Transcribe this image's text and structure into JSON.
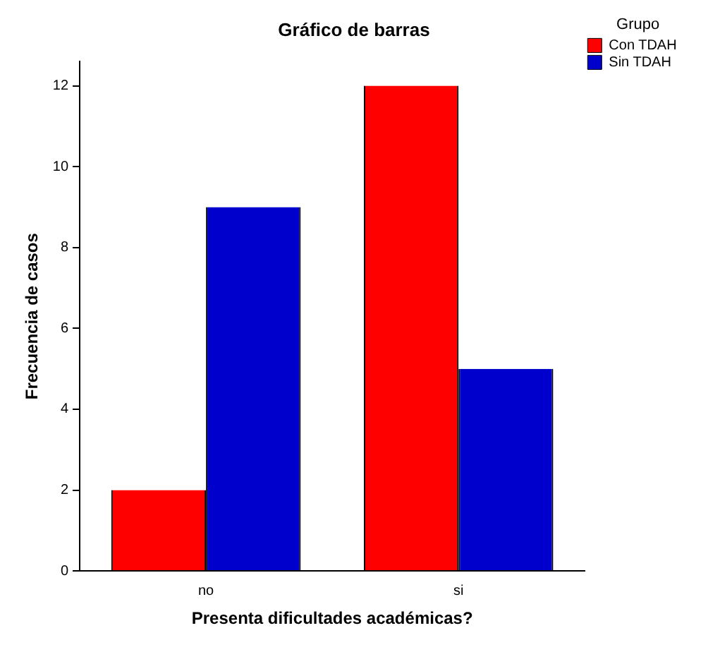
{
  "chart_data": {
    "type": "bar",
    "title": "Gráfico de barras",
    "xlabel": "Presenta dificultades académicas?",
    "ylabel": "Frecuencia de casos",
    "legend_title": "Grupo",
    "categories": [
      "no",
      "si"
    ],
    "series": [
      {
        "name": "Con TDAH",
        "color": "#ff0000",
        "values": [
          2,
          12
        ]
      },
      {
        "name": "Sin TDAH",
        "color": "#0000cc",
        "values": [
          9,
          5
        ]
      }
    ],
    "ylim": [
      0,
      12.6
    ],
    "yticks": [
      0,
      2,
      4,
      6,
      8,
      10,
      12
    ],
    "grid": false,
    "legend": "right"
  }
}
